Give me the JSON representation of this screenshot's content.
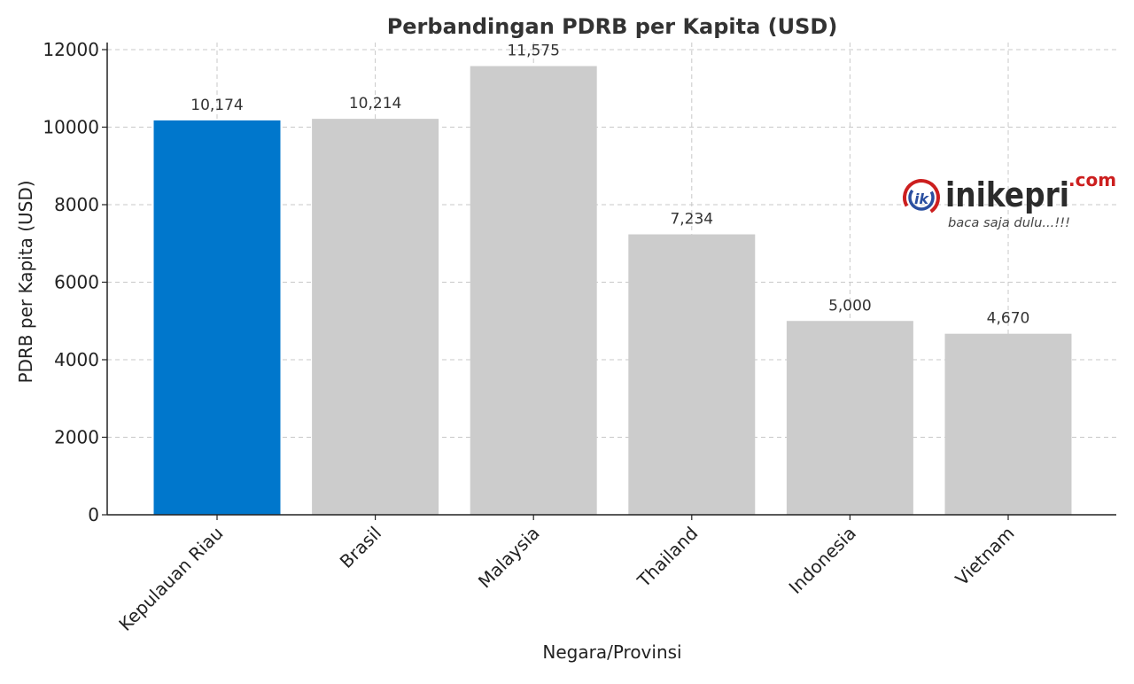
{
  "chart_data": {
    "type": "bar",
    "title": "Perbandingan PDRB per Kapita (USD)",
    "xlabel": "Negara/Provinsi",
    "ylabel": "PDRB per Kapita (USD)",
    "categories": [
      "Kepulauan Riau",
      "Brasil",
      "Malaysia",
      "Thailand",
      "Indonesia",
      "Vietnam"
    ],
    "values": [
      10174,
      10214,
      11575,
      7234,
      5000,
      4670
    ],
    "value_labels": [
      "10,174",
      "10,214",
      "11,575",
      "7,234",
      "5,000",
      "4,670"
    ],
    "bar_colors": [
      "#0077cc",
      "#cccccc",
      "#cccccc",
      "#cccccc",
      "#cccccc",
      "#cccccc"
    ],
    "ylim": [
      0,
      12000
    ],
    "yticks": [
      0,
      2000,
      4000,
      6000,
      8000,
      10000,
      12000
    ],
    "ytick_labels": [
      "0",
      "2000",
      "4000",
      "6000",
      "8000",
      "10000",
      "12000"
    ],
    "grid": true,
    "grid_style": "dashed"
  },
  "watermark": {
    "brand": "inikepri",
    "suffix": ".com",
    "tagline": "baca saja dulu...!!!",
    "mark": "ik",
    "brand_color": "#2b2b2b",
    "accent_color": "#cc1f1f",
    "mark_color": "#2a4fa0"
  }
}
